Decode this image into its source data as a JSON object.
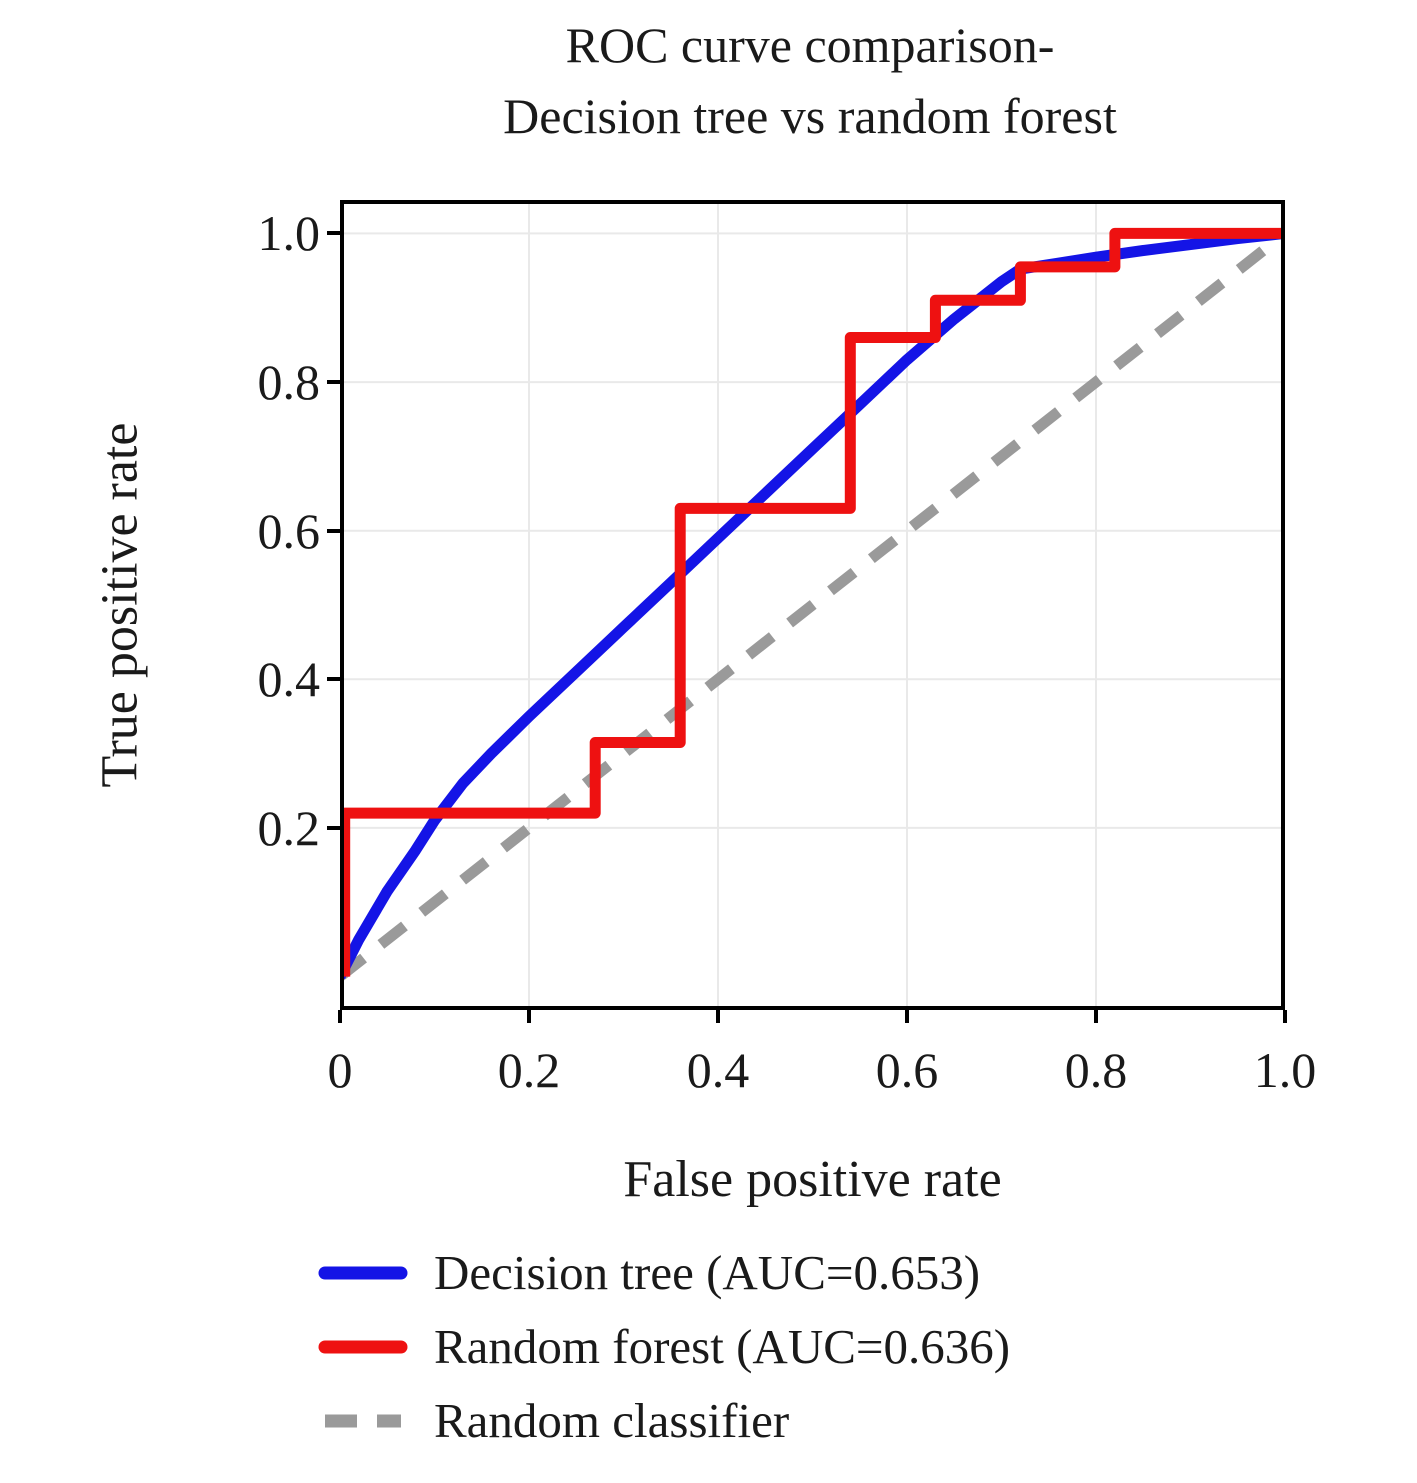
{
  "chart_data": {
    "type": "line",
    "title_line1": "ROC curve comparison-",
    "title_line2": "Decision tree vs random forest",
    "xlabel": "False positive rate",
    "ylabel": "True positive rate",
    "x_range": [
      0,
      1
    ],
    "y_range": [
      -0.045,
      1.045
    ],
    "grid": true,
    "grid_color": "#e9e9e9",
    "frame_color": "#000000",
    "legend_position": "below",
    "x_ticks": {
      "values": [
        0,
        0.2,
        0.4,
        0.6,
        0.8,
        1.0
      ],
      "labels": [
        "0",
        "0.2",
        "0.4",
        "0.6",
        "0.8",
        "1.0"
      ]
    },
    "y_ticks": {
      "values": [
        0.2,
        0.4,
        0.6,
        0.8,
        1.0
      ],
      "labels": [
        "0.2",
        "0.4",
        "0.6",
        "0.8",
        "1.0"
      ]
    },
    "series": [
      {
        "name": "decision-tree",
        "label": "Decision tree (AUC=0.653)",
        "auc": 0.653,
        "color": "#1414e6",
        "style": "solid",
        "width": 11,
        "z": 2,
        "x": [
          0,
          0.02,
          0.05,
          0.08,
          0.1,
          0.13,
          0.16,
          0.2,
          0.25,
          0.3,
          0.35,
          0.4,
          0.45,
          0.5,
          0.55,
          0.6,
          0.65,
          0.7,
          0.72,
          0.76,
          0.8,
          0.85,
          0.9,
          0.95,
          1.0
        ],
        "y": [
          0,
          0.05,
          0.115,
          0.17,
          0.21,
          0.26,
          0.3,
          0.35,
          0.41,
          0.47,
          0.53,
          0.59,
          0.65,
          0.71,
          0.77,
          0.83,
          0.885,
          0.935,
          0.952,
          0.96,
          0.968,
          0.977,
          0.985,
          0.993,
          1.0
        ]
      },
      {
        "name": "random-forest",
        "label": "Random forest (AUC=0.636)",
        "auc": 0.636,
        "color": "#ee1111",
        "style": "solid",
        "width": 11,
        "z": 3,
        "x": [
          0.005,
          0.005,
          0.27,
          0.27,
          0.36,
          0.36,
          0.54,
          0.54,
          0.63,
          0.63,
          0.72,
          0.72,
          0.82,
          0.82,
          1.0
        ],
        "y": [
          0,
          0.22,
          0.22,
          0.315,
          0.315,
          0.63,
          0.63,
          0.86,
          0.86,
          0.91,
          0.91,
          0.955,
          0.955,
          1.0,
          1.0
        ]
      },
      {
        "name": "random-classifier",
        "label": "Random classifier",
        "color": "#9a9a9a",
        "style": "dashed",
        "width": 11,
        "z": 1,
        "x": [
          0,
          1
        ],
        "y": [
          0,
          1
        ]
      }
    ]
  }
}
